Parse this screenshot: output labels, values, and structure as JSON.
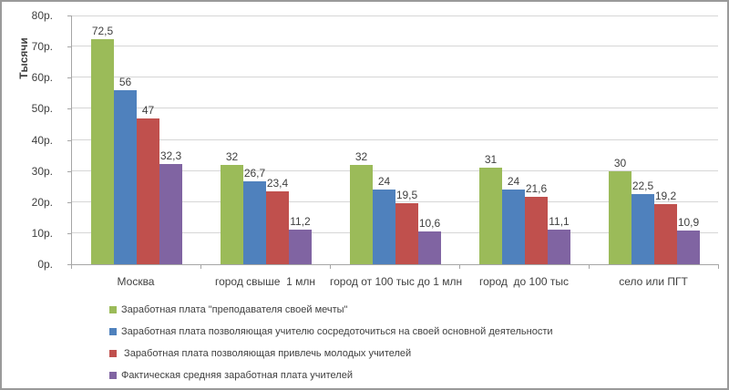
{
  "figure": {
    "background": "#FFFFFF",
    "border_color": "#9A9A9A",
    "axis_color": "#A6A6A6",
    "gridline_color": "#D6D6D6",
    "text_color": "#3F3F3F"
  },
  "chart_data": {
    "type": "bar",
    "title": "",
    "xlabel": "",
    "ylabel": "Тысячи",
    "ylim": [
      0,
      80
    ],
    "y_tick_labels": [
      "0р.",
      "10р.",
      "20р.",
      "30р.",
      "40р.",
      "50р.",
      "60р.",
      "70р.",
      "80р."
    ],
    "grid": true,
    "legend_position": "bottom-left",
    "decimal_separator": ",",
    "categories": [
      "Москва",
      "город свыше  1 млн",
      "город от 100 тыс до 1 млн",
      "город  до 100 тыс",
      "село или ПГТ"
    ],
    "series": [
      {
        "name": "Заработная плата \"преподавателя своей мечты\"",
        "color": "#9BBB59",
        "values": [
          72.5,
          32,
          32,
          31,
          30
        ]
      },
      {
        "name": "Заработная плата позволяющая учителю сосредоточиться на своей основной деятельности",
        "color": "#4F81BD",
        "values": [
          56,
          26.7,
          24,
          24,
          22.5
        ]
      },
      {
        "name": " Заработная плата позволяющая привлечь молодых учителей",
        "color": "#C0504D",
        "values": [
          47,
          23.4,
          19.5,
          21.6,
          19.2
        ]
      },
      {
        "name": "Фактическая средняя заработная плата учителей",
        "color": "#8064A2",
        "values": [
          32.3,
          11.2,
          10.6,
          11.1,
          10.9
        ]
      }
    ]
  }
}
